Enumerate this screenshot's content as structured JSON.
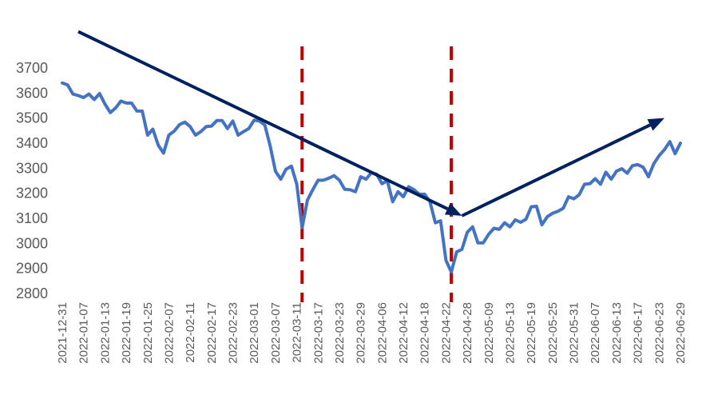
{
  "chart_data": {
    "type": "line",
    "title": "",
    "xlabel": "",
    "ylabel": "",
    "ylim": [
      2800,
      3700
    ],
    "yticks": [
      2800,
      2900,
      3000,
      3100,
      3200,
      3300,
      3400,
      3500,
      3600,
      3700
    ],
    "xticks": [
      "2021-12-31",
      "2022-01-07",
      "2022-01-13",
      "2022-01-19",
      "2022-01-25",
      "2022-02-07",
      "2022-02-11",
      "2022-02-17",
      "2022-02-23",
      "2022-03-01",
      "2022-03-07",
      "2022-03-11",
      "2022-03-17",
      "2022-03-23",
      "2022-03-29",
      "2022-04-06",
      "2022-04-12",
      "2022-04-18",
      "2022-04-22",
      "2022-04-28",
      "2022-05-09",
      "2022-05-13",
      "2022-05-19",
      "2022-05-25",
      "2022-05-31",
      "2022-06-07",
      "2022-06-13",
      "2022-06-17",
      "2022-06-23",
      "2022-06-29"
    ],
    "grid": false,
    "legend": "none",
    "line_color": "#4472C4",
    "values": [
      3640,
      3632,
      3596,
      3590,
      3582,
      3596,
      3574,
      3598,
      3556,
      3522,
      3540,
      3568,
      3560,
      3560,
      3528,
      3528,
      3432,
      3456,
      3392,
      3360,
      3432,
      3448,
      3474,
      3484,
      3466,
      3432,
      3446,
      3466,
      3468,
      3490,
      3490,
      3458,
      3488,
      3432,
      3446,
      3458,
      3492,
      3488,
      3472,
      3390,
      3288,
      3256,
      3296,
      3308,
      3236,
      3062,
      3172,
      3214,
      3252,
      3252,
      3260,
      3270,
      3252,
      3216,
      3214,
      3206,
      3266,
      3256,
      3282,
      3276,
      3238,
      3250,
      3166,
      3206,
      3186,
      3226,
      3214,
      3196,
      3196,
      3166,
      3082,
      3090,
      2932,
      2886,
      2966,
      2976,
      3044,
      3066,
      3002,
      3002,
      3036,
      3060,
      3056,
      3082,
      3066,
      3094,
      3084,
      3096,
      3146,
      3148,
      3074,
      3106,
      3120,
      3128,
      3140,
      3186,
      3178,
      3194,
      3236,
      3238,
      3258,
      3236,
      3284,
      3256,
      3288,
      3298,
      3280,
      3310,
      3314,
      3304,
      3266,
      3318,
      3350,
      3374,
      3406,
      3358,
      3400
    ],
    "annotations": {
      "vlines": [
        {
          "x_index": 45,
          "color": "#C00000",
          "style": "dashed"
        },
        {
          "x_index": 73,
          "color": "#C00000",
          "style": "dashed"
        }
      ],
      "arrows": [
        {
          "from": [
            3,
            3845
          ],
          "to": [
            75,
            3110
          ],
          "color": "#002060"
        },
        {
          "from": [
            75,
            3110
          ],
          "to": [
            113,
            3500
          ],
          "color": "#002060"
        }
      ]
    }
  }
}
